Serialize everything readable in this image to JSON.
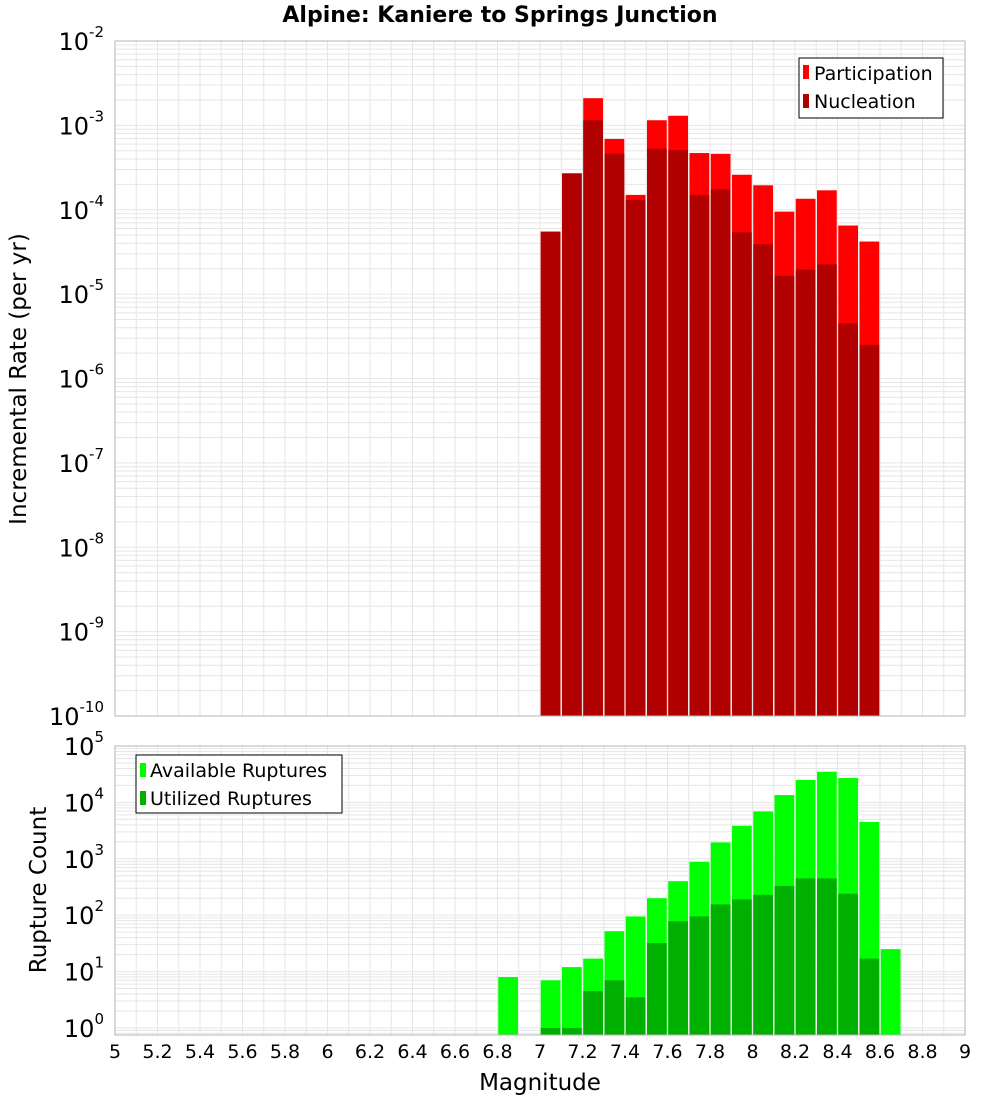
{
  "title": "Alpine: Kaniere to Springs Junction",
  "xlabel": "Magnitude",
  "colors": {
    "participation": "#ff0000",
    "nucleation": "#b00000",
    "available": "#00ff00",
    "utilized": "#00b000",
    "grid": "#e6e6e6",
    "frame": "#b4b4b4"
  },
  "chart_data": [
    {
      "type": "bar",
      "ylabel": "Incremental Rate (per yr)",
      "yscale": "log",
      "xlim": [
        5,
        9
      ],
      "ylim": [
        1e-10,
        0.01
      ],
      "ytick_exponents": [
        "-10",
        "-9",
        "-8",
        "-7",
        "-6",
        "-5",
        "-4",
        "-3",
        "-2"
      ],
      "ytick_base": "10",
      "legend_position": "top-right",
      "x": [
        7.05,
        7.15,
        7.25,
        7.35,
        7.45,
        7.55,
        7.65,
        7.75,
        7.85,
        7.95,
        8.05,
        8.15,
        8.25,
        8.35,
        8.45,
        8.55
      ],
      "series": [
        {
          "name": "Participation",
          "values": [
            5.5e-05,
            0.00027,
            0.0021,
            0.00069,
            0.00015,
            0.00115,
            0.0013,
            0.00047,
            0.00046,
            0.00026,
            0.000195,
            9.5e-05,
            0.000135,
            0.00017,
            6.5e-05,
            4.2e-05
          ]
        },
        {
          "name": "Nucleation",
          "values": [
            5.5e-05,
            0.00027,
            0.00115,
            0.00046,
            0.00013,
            0.00053,
            0.00051,
            0.00015,
            0.000175,
            5.4e-05,
            3.9e-05,
            1.65e-05,
            1.95e-05,
            2.25e-05,
            4.5e-06,
            2.5e-06
          ]
        }
      ]
    },
    {
      "type": "bar",
      "ylabel": "Rupture Count",
      "yscale": "log",
      "xlim": [
        5,
        9
      ],
      "ylim": [
        0.75,
        100000
      ],
      "ytick_exponents": [
        "0",
        "1",
        "2",
        "3",
        "4",
        "5"
      ],
      "ytick_base": "10",
      "legend_position": "top-left",
      "x": [
        6.85,
        7.05,
        7.15,
        7.25,
        7.35,
        7.45,
        7.55,
        7.65,
        7.75,
        7.85,
        7.95,
        8.05,
        8.15,
        8.25,
        8.35,
        8.45,
        8.55,
        8.65
      ],
      "series": [
        {
          "name": "Available Ruptures",
          "values": [
            8,
            7,
            12,
            17,
            52,
            95,
            200,
            400,
            880,
            1950,
            3850,
            6900,
            13500,
            25000,
            35000,
            27000,
            4500,
            25
          ]
        },
        {
          "name": "Utilized Ruptures",
          "values": [
            0,
            1,
            1,
            4.5,
            7,
            3.5,
            32,
            78,
            95,
            155,
            190,
            230,
            330,
            450,
            450,
            240,
            17,
            0
          ]
        }
      ]
    }
  ],
  "xticks": [
    "5",
    "5.2",
    "5.4",
    "5.6",
    "5.8",
    "6",
    "6.2",
    "6.4",
    "6.6",
    "6.8",
    "7",
    "7.2",
    "7.4",
    "7.6",
    "7.8",
    "8",
    "8.2",
    "8.4",
    "8.6",
    "8.8",
    "9"
  ]
}
